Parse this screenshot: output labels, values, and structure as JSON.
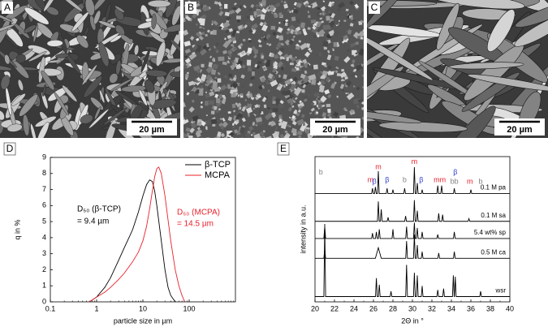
{
  "panels": [
    {
      "label": "A",
      "scale": "20 µm"
    },
    {
      "label": "B",
      "scale": "20 µm"
    },
    {
      "label": "C",
      "scale": "20 µm"
    }
  ],
  "chart_data": [
    {
      "type": "line",
      "panel": "D",
      "log_x": true,
      "x_label": "particle size in µm",
      "y_label": "q in %",
      "xlim": [
        0.1,
        1000
      ],
      "xticks": [
        0.1,
        1,
        10,
        100
      ],
      "ylim": [
        0,
        9
      ],
      "yticks": [
        0,
        1,
        2,
        3,
        4,
        5,
        6,
        7,
        8,
        9
      ],
      "legend": "top-right",
      "series": [
        {
          "name": "β-TCP",
          "color": "#000000",
          "x": [
            0.7,
            1,
            1.5,
            2,
            3,
            4,
            5,
            6,
            8,
            10,
            12,
            14,
            16,
            18,
            20,
            25,
            30,
            35,
            40,
            50
          ],
          "values": [
            0,
            0.3,
            0.9,
            1.5,
            2.6,
            3.4,
            4.0,
            4.5,
            5.6,
            6.6,
            7.3,
            7.6,
            7.5,
            6.9,
            6.0,
            3.8,
            2.0,
            0.9,
            0.4,
            0
          ]
        },
        {
          "name": "MCPA",
          "color": "#e8202a",
          "x": [
            0.7,
            1,
            1.5,
            2,
            3,
            4,
            6,
            8,
            10,
            12,
            14,
            16,
            18,
            20,
            22,
            25,
            30,
            35,
            40,
            50,
            60,
            70,
            80
          ],
          "values": [
            0,
            0.3,
            0.6,
            0.9,
            1.4,
            1.8,
            2.5,
            3.1,
            3.8,
            4.7,
            5.8,
            6.9,
            7.8,
            8.3,
            8.4,
            8.0,
            6.6,
            5.1,
            3.8,
            2.0,
            1.0,
            0.4,
            0
          ]
        }
      ],
      "annotations": [
        {
          "text": "D₅₀ (β-TCP)",
          "color": "#000000"
        },
        {
          "text": "= 9.4 µm",
          "color": "#000000"
        },
        {
          "text": "D₅₀ (MCPA)",
          "color": "#e8202a"
        },
        {
          "text": "= 14.5 µm",
          "color": "#e8202a"
        }
      ]
    },
    {
      "type": "line",
      "panel": "E",
      "x_label": "2Θ in °",
      "y_label": "intensity in a.u.",
      "xlim": [
        20,
        40
      ],
      "xticks": [
        20,
        22,
        24,
        26,
        28,
        30,
        32,
        34,
        36,
        38,
        40
      ],
      "ylim": [
        0,
        11
      ],
      "series": [
        {
          "name": "0.1 M pa",
          "color": "#000000",
          "x": [
            20,
            25.81,
            25.9,
            25.99,
            26.11,
            26.2,
            26.29,
            26.41,
            26.5,
            26.59,
            27.31,
            27.4,
            27.49,
            27.91,
            28.0,
            28.09,
            29.11,
            29.2,
            29.29,
            30.11,
            30.2,
            30.29,
            30.41,
            30.5,
            30.59,
            30.91,
            31.0,
            31.09,
            32.51,
            32.6,
            32.69,
            32.91,
            33.0,
            33.09,
            34.21,
            34.3,
            34.39,
            35.91,
            36.0,
            36.09,
            40
          ],
          "values": [
            8.2,
            8.2,
            8.6,
            8.2,
            8.2,
            8.7,
            8.2,
            8.2,
            9.9,
            8.2,
            8.2,
            8.6,
            8.2,
            8.2,
            8.5,
            8.2,
            8.2,
            8.6,
            8.2,
            8.2,
            10.2,
            8.2,
            8.2,
            9.0,
            8.2,
            8.2,
            8.5,
            8.2,
            8.2,
            8.8,
            8.2,
            8.2,
            8.8,
            8.2,
            8.2,
            8.6,
            8.2,
            8.2,
            8.5,
            8.2,
            8.2
          ]
        },
        {
          "name": "0.1 M sa",
          "color": "#000000",
          "x": [
            20,
            26.41,
            26.5,
            26.59,
            26.71,
            26.8,
            26.89,
            27.41,
            27.5,
            27.59,
            29.21,
            29.3,
            29.39,
            30.11,
            30.2,
            30.29,
            30.41,
            30.5,
            30.59,
            32.61,
            32.7,
            32.79,
            33.01,
            33.1,
            33.19,
            35.71,
            35.8,
            35.89,
            40
          ],
          "values": [
            6.1,
            6.1,
            7.6,
            6.1,
            6.1,
            7.0,
            6.1,
            6.1,
            6.4,
            6.1,
            6.1,
            6.5,
            6.1,
            6.1,
            7.7,
            6.1,
            6.1,
            6.9,
            6.1,
            6.1,
            6.7,
            6.1,
            6.1,
            6.6,
            6.1,
            6.1,
            6.3,
            6.1,
            6.1
          ]
        },
        {
          "name": "5.4 wt% sp",
          "color": "#000000",
          "x": [
            20,
            20.91,
            21.0,
            21.09,
            25.81,
            25.9,
            25.99,
            26.21,
            26.3,
            26.39,
            26.51,
            26.6,
            26.69,
            27.91,
            28.0,
            28.09,
            29.31,
            29.4,
            29.49,
            30.11,
            30.2,
            30.29,
            30.41,
            30.5,
            30.59,
            30.91,
            31.0,
            31.09,
            32.51,
            32.6,
            32.69,
            34.21,
            34.3,
            34.39,
            40
          ],
          "values": [
            4.8,
            4.8,
            5.7,
            4.8,
            4.8,
            5.2,
            4.8,
            4.8,
            5.3,
            4.8,
            4.8,
            5.5,
            4.8,
            4.8,
            5.5,
            4.8,
            4.8,
            5.7,
            4.8,
            4.8,
            6.0,
            4.8,
            4.8,
            5.6,
            4.8,
            4.8,
            5.3,
            4.8,
            4.8,
            5.1,
            4.8,
            4.8,
            5.3,
            4.8,
            4.8
          ]
        },
        {
          "name": "0.5 M ca",
          "color": "#000000",
          "x": [
            20,
            20.91,
            21.0,
            21.09,
            26.2,
            26.5,
            26.8,
            29.31,
            29.4,
            29.49,
            30.11,
            30.2,
            30.29,
            30.41,
            30.5,
            30.59,
            30.91,
            31.0,
            31.09,
            32.61,
            32.7,
            32.79,
            34.21,
            34.3,
            34.39,
            40
          ],
          "values": [
            3.3,
            3.3,
            4.0,
            3.3,
            3.3,
            4.1,
            3.3,
            3.3,
            4.6,
            3.3,
            3.3,
            5.1,
            3.3,
            3.3,
            4.3,
            3.3,
            3.3,
            3.8,
            3.3,
            3.3,
            3.7,
            3.3,
            3.3,
            3.8,
            3.3,
            3.3
          ]
        },
        {
          "name": "wsr",
          "color": "#000000",
          "x": [
            20,
            20.91,
            21.0,
            21.09,
            26.21,
            26.3,
            26.39,
            26.51,
            26.6,
            26.69,
            27.71,
            27.8,
            27.89,
            29.31,
            29.4,
            29.49,
            30.11,
            30.2,
            30.29,
            30.41,
            30.5,
            30.59,
            30.91,
            31.0,
            31.09,
            32.51,
            32.6,
            32.69,
            33.11,
            33.2,
            33.29,
            34.11,
            34.2,
            34.29,
            34.31,
            34.4,
            34.49,
            36.91,
            37.0,
            37.09,
            40
          ],
          "values": [
            0.4,
            0.4,
            5.9,
            0.4,
            0.4,
            1.8,
            0.4,
            0.4,
            1.3,
            0.4,
            0.4,
            0.8,
            0.4,
            0.4,
            2.8,
            0.4,
            0.4,
            2.2,
            0.4,
            0.4,
            2.0,
            0.4,
            0.4,
            1.2,
            0.4,
            0.4,
            0.9,
            0.4,
            0.4,
            1.0,
            0.4,
            0.4,
            2.0,
            0.4,
            0.4,
            1.9,
            0.4,
            0.4,
            0.8,
            0.4,
            0.4
          ]
        }
      ],
      "annotations": [
        {
          "text": "b",
          "x": 20.6,
          "y": 9.8,
          "color": "#808080"
        },
        {
          "text": "m",
          "x": 25.7,
          "y": 9.2,
          "color": "#e8202a"
        },
        {
          "text": "β",
          "x": 26.1,
          "y": 9.1,
          "color": "#2a3fd0"
        },
        {
          "text": "m",
          "x": 26.5,
          "y": 10.2,
          "color": "#e8202a"
        },
        {
          "text": "β",
          "x": 27.4,
          "y": 9.2,
          "color": "#2a3fd0"
        },
        {
          "text": "b",
          "x": 29.2,
          "y": 9.2,
          "color": "#808080"
        },
        {
          "text": "m",
          "x": 30.2,
          "y": 10.6,
          "color": "#e8202a"
        },
        {
          "text": "β",
          "x": 30.9,
          "y": 9.2,
          "color": "#2a3fd0"
        },
        {
          "text": "mm",
          "x": 32.8,
          "y": 9.2,
          "color": "#e8202a"
        },
        {
          "text": "β",
          "x": 34.4,
          "y": 9.8,
          "color": "#2a3fd0"
        },
        {
          "text": "bb",
          "x": 34.3,
          "y": 9.1,
          "color": "#808080"
        },
        {
          "text": "m",
          "x": 35.9,
          "y": 9.1,
          "color": "#e8202a"
        },
        {
          "text": "b",
          "x": 37.0,
          "y": 9.1,
          "color": "#808080"
        }
      ]
    }
  ]
}
